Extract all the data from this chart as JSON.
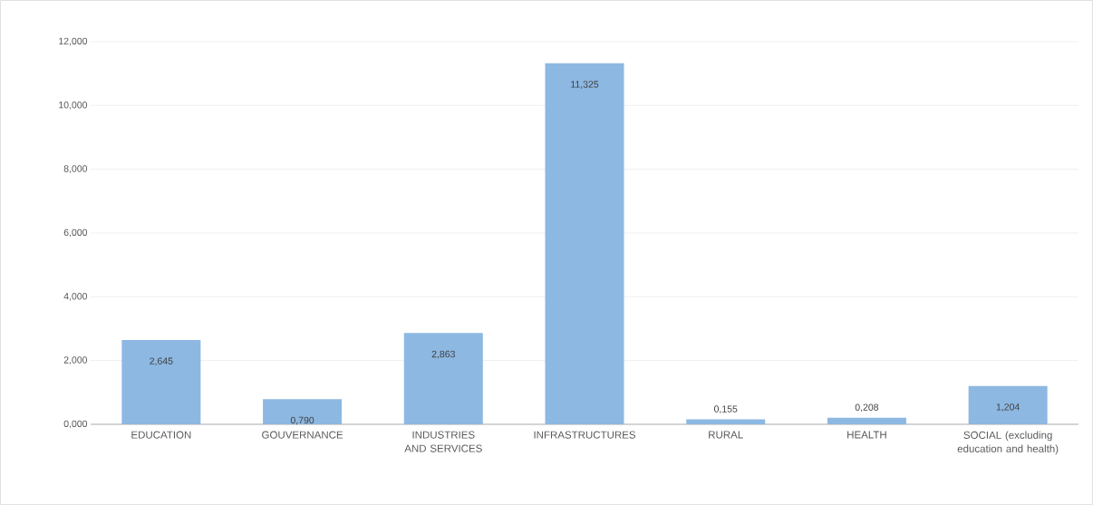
{
  "chart_data": {
    "type": "bar",
    "categories": [
      "EDUCATION",
      "GOUVERNANCE",
      "INDUSTRIES AND SERVICES",
      "INFRASTRUCTURES",
      "RURAL",
      "HEALTH",
      "SOCIAL (excluding education and health)"
    ],
    "values": [
      2.645,
      0.79,
      2.863,
      11.325,
      0.155,
      0.208,
      1.204
    ],
    "value_labels": [
      "2,645",
      "0,790",
      "2,863",
      "11,325",
      "0,155",
      "0,208",
      "1,204"
    ],
    "color": "#8db8e2",
    "ylim": [
      0,
      12
    ],
    "yticks": [
      {
        "value": 0,
        "label": "0,000"
      },
      {
        "value": 2,
        "label": "2,000"
      },
      {
        "value": 4,
        "label": "4,000"
      },
      {
        "value": 6,
        "label": "6,000"
      },
      {
        "value": 8,
        "label": "8,000"
      },
      {
        "value": 10,
        "label": "10,000"
      },
      {
        "value": 12,
        "label": "12,000"
      }
    ],
    "grid": "y"
  }
}
